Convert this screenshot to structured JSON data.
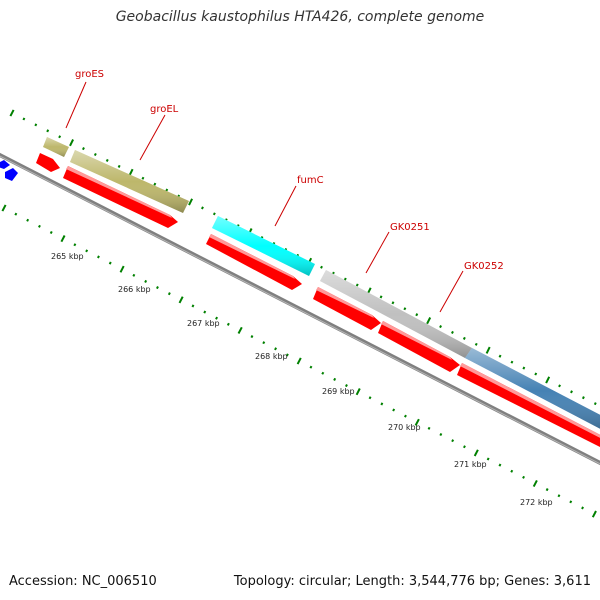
{
  "title": "Geobacillus kaustophilus HTA426, complete genome",
  "footer": {
    "accession": "Accession: NC_006510",
    "summary": "Topology: circular; Length: 3,544,776 bp; Genes: 3,611"
  },
  "colors": {
    "cds": "#ff0000",
    "groES": "#bdb76b",
    "groEL": "#bdb76b",
    "fumC": "#00ffff",
    "GK0251": "#c0c0c0",
    "GK0252": "#4682b4",
    "left_gene": "#0000ff",
    "ticks": "#008000",
    "backbone": "#808080",
    "label": "#cc0000"
  },
  "features": [
    {
      "name": "groES",
      "color_key": "groES"
    },
    {
      "name": "groEL",
      "color_key": "groEL"
    },
    {
      "name": "fumC",
      "color_key": "fumC"
    },
    {
      "name": "GK0251",
      "color_key": "GK0251"
    },
    {
      "name": "GK0252",
      "color_key": "GK0252"
    }
  ],
  "ticks": [
    "265 kbp",
    "266 kbp",
    "267 kbp",
    "268 kbp",
    "269 kbp",
    "270 kbp",
    "271 kbp",
    "272 kbp"
  ]
}
